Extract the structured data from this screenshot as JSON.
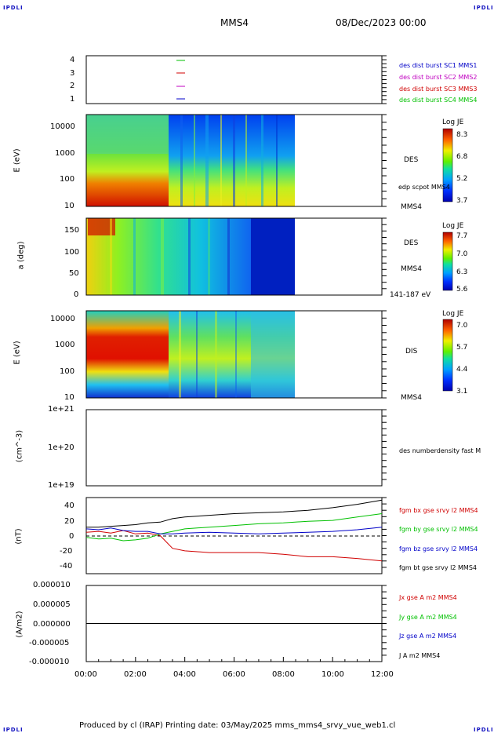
{
  "corners": {
    "top_left": "IPDLI",
    "top_right": "IPDLI",
    "bottom_left": "IPDLI",
    "bottom_right": "IPDLI"
  },
  "header": {
    "spacecraft": "MMS4",
    "date": "08/Dec/2023 00:00"
  },
  "footer": {
    "text": "Produced by cl (IRAP)   Printing date: 03/May/2025   mms_mms4_srvy_vue_web1.cl"
  },
  "colors": {
    "mms1": "#0000c8",
    "mms2": "#c000c0",
    "mms3": "#d00000",
    "mms4": "#00c000",
    "bx": "#d00000",
    "by": "#00c000",
    "bz": "#0000c8",
    "bt": "#000000"
  },
  "panel1": {
    "yticks": [
      "4",
      "3",
      "2",
      "1"
    ],
    "legend": [
      "des dist burst SC1 MMS1",
      "des dist burst SC2 MMS2",
      "des dist burst SC3 MMS3",
      "des dist burst SC4 MMS4"
    ]
  },
  "panel2": {
    "ylabel": "E (eV)",
    "yticks": [
      "10000",
      "1000",
      "100",
      "10"
    ],
    "side_label": "DES",
    "side_sub": "edp scpot MMS4",
    "side_bottom": "MMS4",
    "colorbar": {
      "title": "Log JE",
      "ticks": [
        "8.3",
        "6.8",
        "5.2",
        "3.7"
      ]
    }
  },
  "panel3": {
    "ylabel": "a (deg)",
    "yticks": [
      "150",
      "100",
      "50",
      "0"
    ],
    "side_label": "DES",
    "side_sub": "MMS4",
    "side_bottom": "141-187 eV",
    "colorbar": {
      "title": "Log JE",
      "ticks": [
        "7.7",
        "7.0",
        "6.3",
        "5.6"
      ]
    }
  },
  "panel4": {
    "ylabel": "E (eV)",
    "yticks": [
      "10000",
      "1000",
      "100",
      "10"
    ],
    "side_label": "DIS",
    "side_bottom": "MMS4",
    "colorbar": {
      "title": "Log JE",
      "ticks": [
        "7.0",
        "5.7",
        "4.4",
        "3.1"
      ]
    }
  },
  "panel5": {
    "ylabel": "(cm^-3)",
    "yticks": [
      "1e+21",
      "1e+20",
      "1e+19"
    ],
    "legend": [
      "des numberdensity fast M"
    ]
  },
  "panel6": {
    "ylabel": "(nT)",
    "yticks": [
      "40",
      "20",
      "0",
      "-20",
      "-40"
    ],
    "legend": [
      "fgm bx gse srvy l2 MMS4",
      "fgm by gse srvy l2 MMS4",
      "fgm bz gse srvy l2 MMS4",
      "fgm bt gse srvy l2 MMS4"
    ]
  },
  "panel7": {
    "ylabel": "(A/m2)",
    "yticks": [
      "0.000010",
      "0.000005",
      "0.000000",
      "-0.000005",
      "-0.000010"
    ],
    "legend": [
      "Jx gse A m2 MMS4",
      "Jy gse A m2 MMS4",
      "Jz gse A m2 MMS4",
      "J A m2 MMS4"
    ]
  },
  "xaxis": {
    "ticks": [
      "00:00",
      "02:00",
      "04:00",
      "06:00",
      "08:00",
      "10:00",
      "12:00"
    ]
  },
  "chart_data": [
    {
      "type": "line",
      "title": "",
      "x": [
        "00:00",
        "00:30",
        "01:00",
        "01:30",
        "02:00",
        "02:30",
        "03:00",
        "03:30",
        "04:00",
        "05:00",
        "06:00",
        "07:00",
        "08:00",
        "09:00",
        "10:00",
        "11:00",
        "12:00"
      ],
      "series": [
        {
          "name": "fgm bx gse srvy l2 MMS4",
          "values": [
            4,
            5,
            3,
            6,
            2,
            3,
            0,
            -15,
            -18,
            -20,
            -20,
            -20,
            -22,
            -25,
            -25,
            -27,
            -30
          ]
        },
        {
          "name": "fgm by gse srvy l2 MMS4",
          "values": [
            -2,
            -4,
            -3,
            -6,
            -5,
            -3,
            2,
            5,
            8,
            10,
            12,
            14,
            15,
            17,
            18,
            22,
            26
          ]
        },
        {
          "name": "fgm bz gse srvy l2 MMS4",
          "values": [
            8,
            7,
            9,
            6,
            5,
            5,
            2,
            2,
            3,
            4,
            3,
            2,
            3,
            4,
            5,
            7,
            10
          ]
        },
        {
          "name": "fgm bt gse srvy l2 MMS4",
          "values": [
            10,
            10,
            11,
            12,
            13,
            15,
            16,
            20,
            22,
            24,
            26,
            27,
            28,
            30,
            33,
            37,
            42
          ]
        }
      ],
      "ylim": [
        -45,
        45
      ]
    },
    {
      "type": "line",
      "title": "",
      "x": [
        "00:00",
        "12:00"
      ],
      "series": [
        {
          "name": "J A m2 MMS4",
          "values": [
            0.0,
            0.0
          ]
        }
      ],
      "ylim": [
        -1e-05,
        1e-05
      ]
    }
  ]
}
